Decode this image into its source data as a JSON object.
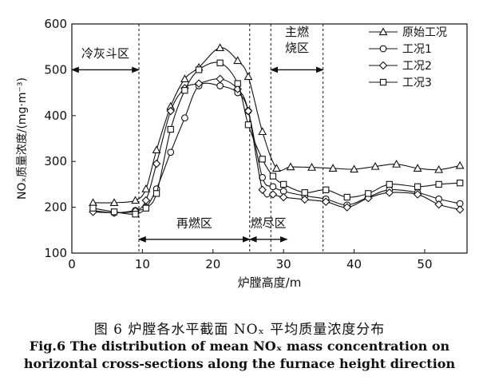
{
  "chart_data": {
    "type": "line",
    "xlabel": "炉膛高度/m",
    "ylabel": "NOₓ质量浓度/(mg·m⁻³)",
    "xlim": [
      0,
      56
    ],
    "ylim": [
      100,
      600
    ],
    "xticks": [
      0,
      10,
      20,
      30,
      40,
      50
    ],
    "yticks": [
      100,
      200,
      300,
      400,
      500,
      600
    ],
    "grid": false,
    "legend_position": "top-right",
    "series": [
      {
        "name": "原始工况",
        "marker": "triangle",
        "x": [
          3,
          6,
          9,
          10.5,
          12,
          14,
          16,
          18,
          21,
          23.5,
          25,
          27,
          29,
          31,
          34,
          37,
          40,
          43,
          46,
          49,
          52,
          55
        ],
        "y": [
          210,
          210,
          215,
          240,
          325,
          420,
          480,
          505,
          548,
          520,
          485,
          365,
          285,
          288,
          287,
          285,
          283,
          289,
          294,
          285,
          282,
          291
        ]
      },
      {
        "name": "工况1",
        "marker": "circle",
        "x": [
          3,
          6,
          9,
          10.5,
          12,
          14,
          16,
          18,
          21,
          23.5,
          25,
          27,
          28.5,
          30,
          33,
          36,
          39,
          42,
          45,
          49,
          52,
          55
        ],
        "y": [
          193,
          188,
          193,
          200,
          240,
          320,
          395,
          465,
          465,
          450,
          410,
          265,
          245,
          235,
          225,
          218,
          205,
          222,
          238,
          232,
          218,
          208
        ]
      },
      {
        "name": "工况2",
        "marker": "diamond",
        "x": [
          3,
          6,
          9,
          10.5,
          12,
          14,
          16,
          18,
          21,
          23.5,
          25,
          27,
          28.5,
          30,
          33,
          36,
          39,
          42,
          45,
          49,
          52,
          55
        ],
        "y": [
          190,
          188,
          192,
          215,
          295,
          410,
          460,
          470,
          480,
          458,
          410,
          238,
          228,
          222,
          217,
          212,
          200,
          220,
          232,
          228,
          206,
          195
        ]
      },
      {
        "name": "工况3",
        "marker": "square",
        "x": [
          3,
          6,
          9,
          10.5,
          12,
          14,
          16,
          18,
          21,
          23.5,
          25,
          27,
          28.5,
          30,
          33,
          36,
          39,
          42,
          45,
          49,
          52,
          55
        ],
        "y": [
          198,
          190,
          185,
          198,
          230,
          370,
          455,
          500,
          515,
          470,
          380,
          305,
          268,
          250,
          232,
          238,
          222,
          230,
          250,
          245,
          250,
          253
        ]
      }
    ],
    "vlines": [
      9.5,
      25.2,
      28.2,
      35.6
    ],
    "regions": [
      {
        "label": "冷灰斗区",
        "x_start": 0,
        "x_end": 9.5,
        "y": 500,
        "label_y": 527
      },
      {
        "label": "再燃区",
        "x_start": 9.5,
        "x_end": 25.2,
        "y": 130,
        "label_y": 157
      },
      {
        "label": "燃尽区",
        "x_start": 25.2,
        "x_end": 30.5,
        "y": 130,
        "label_y": 157
      },
      {
        "label_lines": [
          "主燃",
          "烧区"
        ],
        "x_start": 28.2,
        "x_end": 35.6,
        "y": 500,
        "label_y": 574
      }
    ]
  },
  "caption": {
    "cn": "图 6  炉膛各水平截面 NOₓ 平均质量浓度分布",
    "en_line1": "Fig.6 The distribution of mean NOₓ mass concentration on",
    "en_line2": "horizontal cross-sections along the furnace height direction"
  }
}
